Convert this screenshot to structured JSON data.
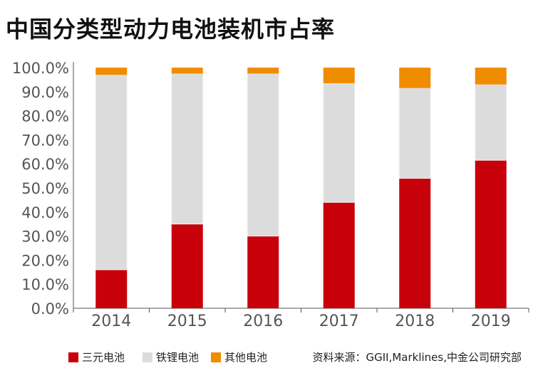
{
  "title": "中国分类型动力电池装机市占率",
  "source": "资料来源：GGII,Marklines,中金公司研究部",
  "colors": {
    "三元电池": "#c8000a",
    "铁锂电池": "#dcdcdc",
    "其他电池": "#f08c00",
    "axis": "#555555",
    "tick_text": "#555555"
  },
  "chart_data": {
    "type": "bar",
    "stacked": true,
    "title": "中国分类型动力电池装机市占率",
    "categories": [
      "2014",
      "2015",
      "2016",
      "2017",
      "2018",
      "2019"
    ],
    "series": [
      {
        "name": "三元电池",
        "values": [
          16,
          35,
          30,
          44,
          54,
          61.5
        ]
      },
      {
        "name": "铁锂电池",
        "values": [
          81,
          62.5,
          67.5,
          49.5,
          37.5,
          31.5
        ]
      },
      {
        "name": "其他电池",
        "values": [
          3,
          2.5,
          2.5,
          6.5,
          8.5,
          7
        ]
      }
    ],
    "ylim": [
      0,
      100
    ],
    "yticks": [
      "0.0%",
      "10.0%",
      "20.0%",
      "30.0%",
      "40.0%",
      "50.0%",
      "60.0%",
      "70.0%",
      "80.0%",
      "90.0%",
      "100.0%"
    ],
    "legend_position": "bottom-left",
    "grid": false
  }
}
